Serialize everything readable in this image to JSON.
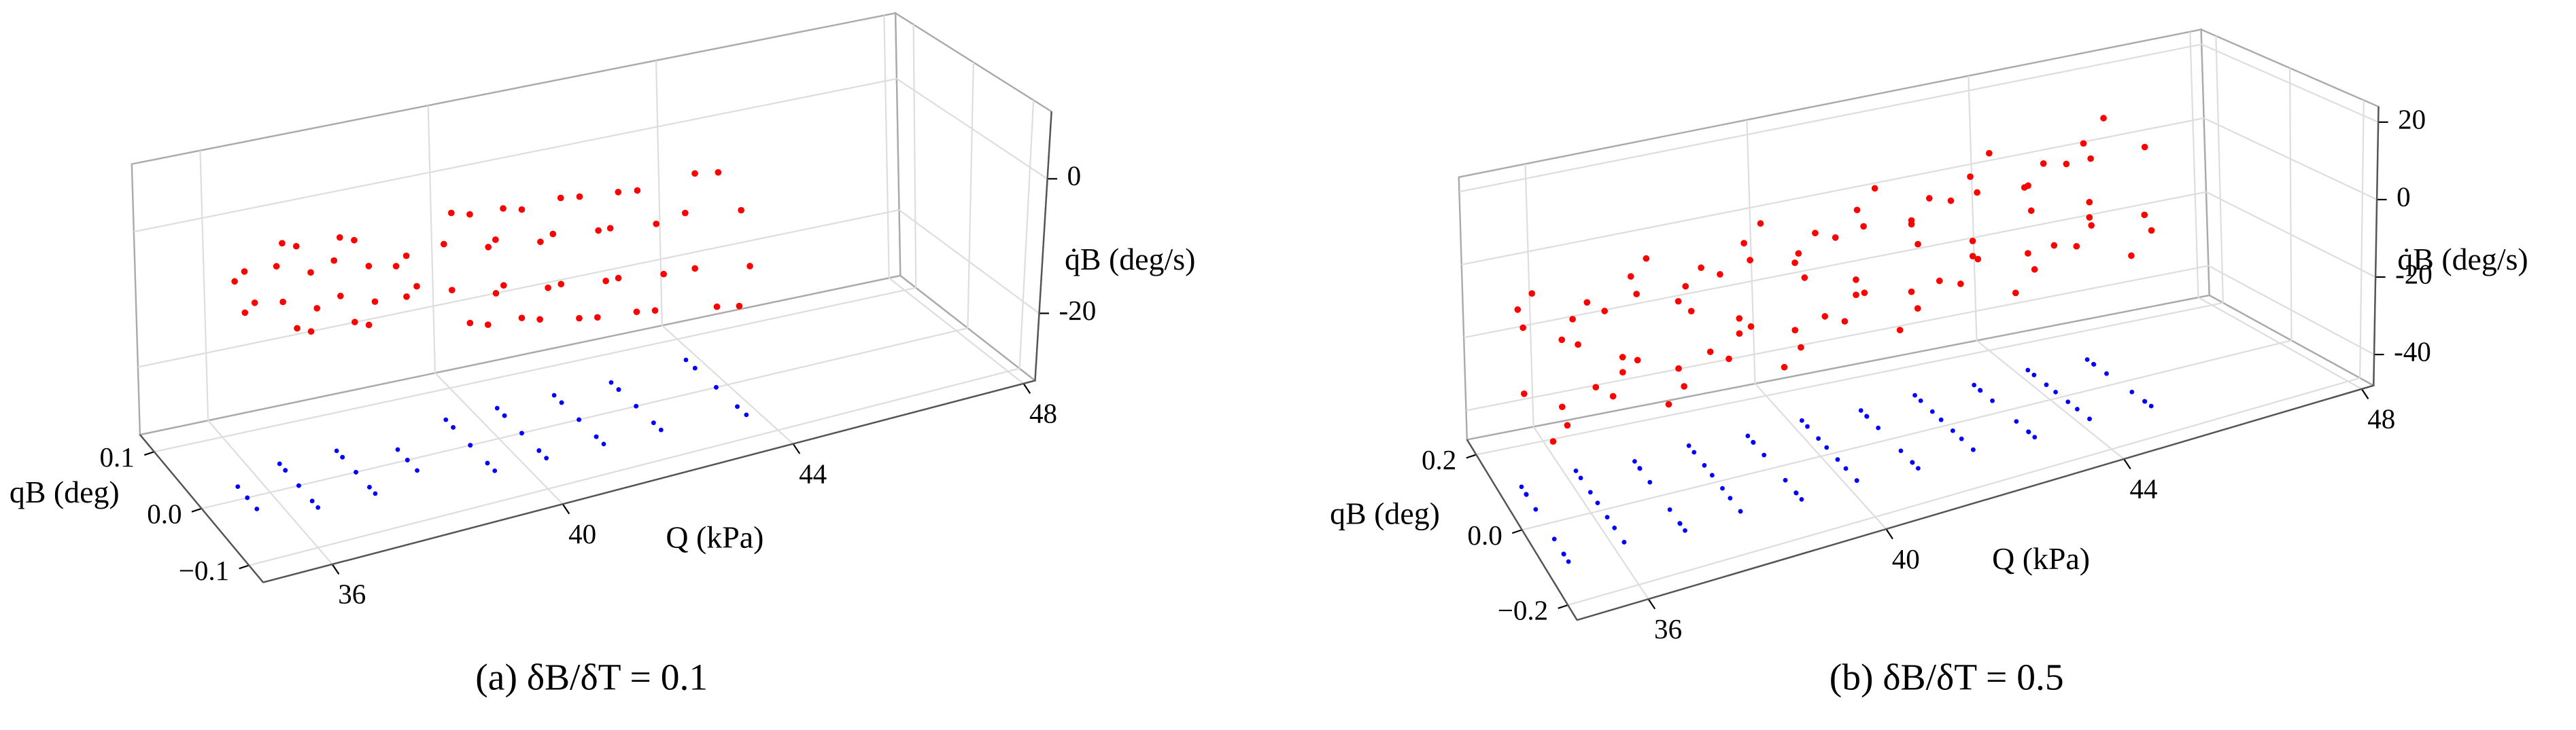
{
  "chart_data": [
    {
      "type": "scatter3d",
      "title": "(a) δB/δT = 0.1",
      "xlabel": "Q (kPa)",
      "ylabel": "qB (deg)",
      "zlabel": "q̇B (deg/s)",
      "xlim": [
        34.8,
        48.2
      ],
      "ylim": [
        -0.13,
        0.13
      ],
      "zlim": [
        -30,
        10
      ],
      "xticks": [
        36,
        40,
        44,
        48
      ],
      "yticks": [
        0.1,
        {
          "value": 0,
          "label": "0.0"
        },
        {
          "value": -0.1,
          "label": "−0.1"
        }
      ],
      "zticks": [
        0,
        -20
      ],
      "grid": true,
      "series": [
        {
          "color": "#ff0000",
          "projection_color": "#0000ff",
          "x": [
            35.6,
            35.6,
            35.6,
            35.6,
            36.5,
            36.5,
            36.5,
            36.5,
            36.5,
            36.5,
            36.5,
            36.5,
            37.5,
            37.5,
            37.5,
            37.5,
            37.5,
            37.5,
            37.5,
            37.5,
            38.4,
            38.4,
            38.4,
            38.4,
            39.5,
            39.5,
            39.5,
            39.5,
            39.5,
            39.5,
            39.5,
            39.5,
            40.4,
            40.4,
            40.4,
            40.4,
            40.4,
            40.4,
            40.4,
            40.4,
            41.4,
            41.4,
            41.4,
            41.4,
            41.4,
            41.4,
            41.4,
            41.4,
            42.4,
            42.4,
            42.4,
            42.4,
            42.4,
            42.4,
            42.4,
            42.4,
            43.8,
            43.8,
            43.8,
            43.8,
            43.8,
            43.8,
            43.8,
            43.8
          ],
          "y": [
            0.02,
            0,
            -0.02,
            0,
            0.04,
            0.028,
            0,
            -0.028,
            -0.04,
            -0.028,
            0,
            0.028,
            0.04,
            0.028,
            0,
            -0.028,
            -0.04,
            -0.028,
            0,
            0.028,
            0.02,
            0,
            -0.02,
            0,
            0.05,
            0.035,
            0,
            -0.035,
            -0.05,
            -0.035,
            0,
            0.035,
            0.05,
            0.035,
            0,
            -0.035,
            -0.05,
            -0.035,
            0,
            0.035,
            0.05,
            0.035,
            0,
            -0.035,
            -0.05,
            -0.035,
            0,
            0.035,
            0.05,
            0.035,
            0,
            -0.035,
            -0.05,
            -0.035,
            0,
            0.035,
            0.06,
            0.042,
            0,
            -0.042,
            -0.06,
            -0.042,
            0,
            0.042
          ],
          "z": [
            0,
            3,
            0,
            -3,
            -1,
            3.3,
            5,
            3.3,
            -1,
            -5.3,
            -7,
            -5.3,
            -2,
            2.3,
            4,
            2.3,
            -2,
            -6.3,
            -8,
            -6.3,
            -3,
            0,
            -3,
            -6,
            -4,
            1.7,
            4,
            1.7,
            -4,
            -9.7,
            -12,
            -9.7,
            -5,
            0.7,
            3,
            0.7,
            -5,
            -10.7,
            -13,
            -10.7,
            -6,
            0.4,
            3,
            0.4,
            -6,
            -12.4,
            -15,
            -12.4,
            -7,
            -0.6,
            2,
            -0.6,
            -7,
            -13.4,
            -16,
            -13.4,
            -8,
            -0.9,
            2,
            -0.9,
            -8,
            -15.1,
            -18,
            -15.1
          ]
        }
      ]
    },
    {
      "type": "scatter3d",
      "title": "(b) δB/δT = 0.5",
      "xlabel": "Q (kPa)",
      "ylabel": "qB (deg)",
      "zlabel": "q̇B (deg/s)",
      "xlim": [
        34.8,
        48.2
      ],
      "ylim": [
        -0.24,
        0.24
      ],
      "zlim": [
        -48,
        24
      ],
      "xticks": [
        36,
        40,
        44,
        48
      ],
      "yticks": [
        0.2,
        {
          "value": 0,
          "label": "0.0"
        },
        {
          "value": -0.2,
          "label": "−0.2"
        }
      ],
      "zticks": [
        20,
        0,
        -20,
        -40
      ],
      "grid": true,
      "series": [
        {
          "color": "#ff0000",
          "projection_color": "#0000ff",
          "x": [
            35.2,
            35.2,
            35.2,
            35.2,
            35.2,
            35.2,
            35.2,
            35.2,
            36.2,
            36.2,
            36.2,
            36.2,
            36.2,
            36.2,
            36.2,
            36.2,
            37.2,
            37.2,
            37.2,
            37.2,
            37.2,
            37.2,
            37.2,
            37.2,
            38.2,
            38.2,
            38.2,
            38.2,
            38.2,
            38.2,
            38.2,
            38.2,
            39.2,
            39.2,
            39.2,
            39.2,
            39.2,
            39.2,
            39.2,
            39.2,
            40.2,
            40.2,
            40.2,
            40.2,
            40.2,
            40.2,
            40.2,
            40.2,
            41.2,
            41.2,
            41.2,
            41.2,
            41.2,
            41.2,
            41.2,
            41.2,
            42.2,
            42.2,
            42.2,
            42.2,
            42.2,
            42.2,
            42.2,
            42.2,
            43.2,
            43.2,
            43.2,
            43.2,
            43.2,
            43.2,
            43.2,
            43.2,
            44.2,
            44.2,
            44.2,
            44.2,
            44.2,
            44.2,
            44.2,
            44.2,
            45.2,
            45.2,
            45.2,
            45.2,
            45.2,
            45.2,
            45.2,
            45.2
          ],
          "y": [
            0.08,
            0.101,
            0.04,
            -0.081,
            -0.08,
            -0.101,
            -0.04,
            0.081,
            0.11,
            0.05,
            -0.02,
            -0.09,
            -0.09,
            -0.05,
            0.02,
            0.09,
            0.08,
            0.101,
            0.04,
            -0.081,
            -0.08,
            -0.101,
            -0.04,
            0.081,
            0.11,
            0.05,
            -0.02,
            -0.09,
            -0.09,
            -0.05,
            0.02,
            0.09,
            0.08,
            0.101,
            0.04,
            -0.081,
            -0.08,
            -0.101,
            -0.04,
            0.081,
            0.11,
            0.05,
            -0.02,
            -0.09,
            -0.09,
            -0.05,
            0.02,
            0.09,
            0.08,
            0.101,
            0.04,
            -0.081,
            -0.08,
            -0.101,
            -0.04,
            0.081,
            0.11,
            0.05,
            -0.02,
            -0.09,
            -0.09,
            -0.05,
            0.02,
            0.09,
            0.08,
            0.101,
            0.04,
            -0.081,
            -0.08,
            -0.101,
            -0.04,
            0.081,
            0.11,
            0.05,
            -0.02,
            -0.09,
            -0.09,
            -0.05,
            0.02,
            0.09,
            0.08,
            0.101,
            0.04,
            -0.081,
            -0.08,
            -0.101,
            -0.04,
            0.081
          ],
          "z": [
            -3,
            -0.1,
            10,
            8.9,
            -9,
            -11.9,
            -22,
            -20.9,
            -7,
            3,
            7,
            1,
            -3,
            -13,
            -17,
            -12,
            -1,
            1.9,
            12,
            10.9,
            -7,
            -9.9,
            -20,
            -18.9,
            -5,
            5,
            9,
            3,
            -1,
            -11,
            -15,
            -10,
            1,
            3.9,
            14,
            12.9,
            -5,
            -7.9,
            -18,
            -16.9,
            -3,
            7,
            11,
            5,
            1,
            -9,
            -13,
            -8,
            3,
            5.9,
            16,
            14.9,
            -3,
            -5.9,
            -16,
            -14.9,
            -1,
            9,
            13,
            7,
            3,
            -7,
            -11,
            -6,
            5,
            7.9,
            18,
            16.9,
            -1,
            -3.9,
            -14,
            -12.9,
            1,
            11,
            15,
            9,
            5,
            -5,
            -9,
            -4,
            7,
            9.9,
            20,
            18.9,
            1,
            -1.9,
            -12,
            -10.9
          ]
        }
      ]
    }
  ]
}
